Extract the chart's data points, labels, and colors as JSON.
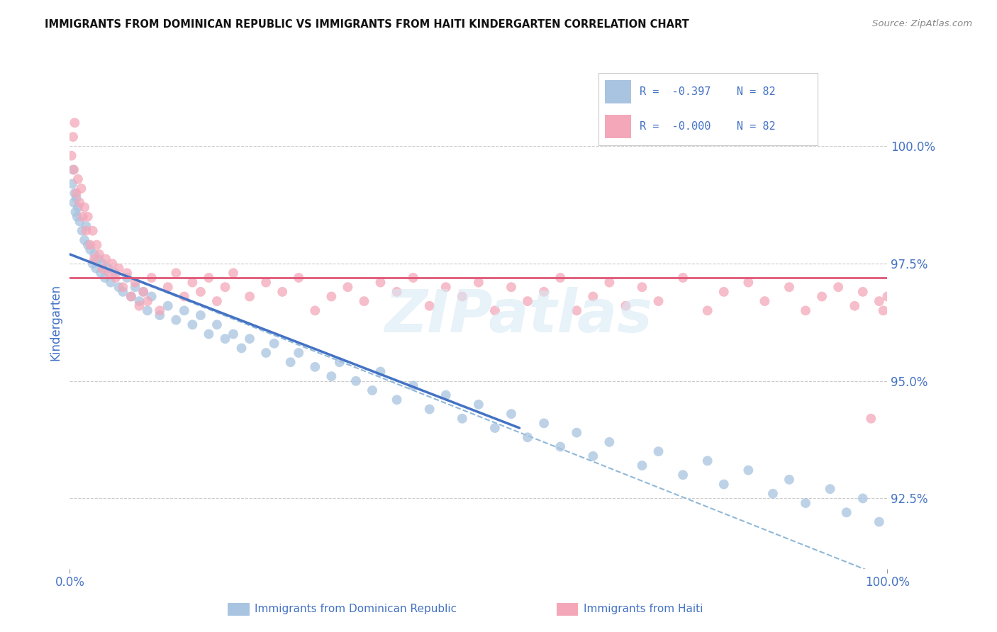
{
  "title": "IMMIGRANTS FROM DOMINICAN REPUBLIC VS IMMIGRANTS FROM HAITI KINDERGARTEN CORRELATION CHART",
  "source": "Source: ZipAtlas.com",
  "ylabel": "Kindergarten",
  "right_yticks": [
    100.0,
    97.5,
    95.0,
    92.5
  ],
  "right_ytick_labels": [
    "100.0%",
    "97.5%",
    "95.0%",
    "92.5%"
  ],
  "legend_r1": "R =  -0.397",
  "legend_n1": "N = 82",
  "legend_r2": "R =  -0.000",
  "legend_n2": "N = 82",
  "blue_color": "#a8c4e0",
  "pink_color": "#f4a7b9",
  "line_blue": "#4472c4",
  "line_pink": "#e05575",
  "line_dashed": "#90b8d8",
  "title_color": "#222222",
  "axis_label_color": "#4472c4",
  "legend_text_color": "#4472c4",
  "background_color": "#ffffff",
  "x_min": 0.0,
  "x_max": 100.0,
  "y_min": 91.0,
  "y_max": 101.5,
  "blue_scatter_x": [
    0.3,
    0.4,
    0.5,
    0.6,
    0.7,
    0.8,
    0.9,
    1.0,
    1.2,
    1.5,
    1.8,
    2.0,
    2.2,
    2.5,
    2.8,
    3.0,
    3.2,
    3.5,
    3.8,
    4.0,
    4.3,
    4.7,
    5.0,
    5.5,
    6.0,
    6.5,
    7.0,
    7.5,
    8.0,
    8.5,
    9.0,
    9.5,
    10.0,
    11.0,
    12.0,
    13.0,
    14.0,
    15.0,
    16.0,
    17.0,
    18.0,
    19.0,
    20.0,
    21.0,
    22.0,
    24.0,
    25.0,
    27.0,
    28.0,
    30.0,
    32.0,
    33.0,
    35.0,
    37.0,
    38.0,
    40.0,
    42.0,
    44.0,
    46.0,
    48.0,
    50.0,
    52.0,
    54.0,
    56.0,
    58.0,
    60.0,
    62.0,
    64.0,
    66.0,
    70.0,
    72.0,
    75.0,
    78.0,
    80.0,
    83.0,
    86.0,
    88.0,
    90.0,
    93.0,
    95.0,
    97.0,
    99.0
  ],
  "blue_scatter_y": [
    99.2,
    99.5,
    98.8,
    99.0,
    98.6,
    98.9,
    98.5,
    98.7,
    98.4,
    98.2,
    98.0,
    98.3,
    97.9,
    97.8,
    97.5,
    97.7,
    97.4,
    97.6,
    97.3,
    97.5,
    97.2,
    97.4,
    97.1,
    97.3,
    97.0,
    96.9,
    97.2,
    96.8,
    97.0,
    96.7,
    96.9,
    96.5,
    96.8,
    96.4,
    96.6,
    96.3,
    96.5,
    96.2,
    96.4,
    96.0,
    96.2,
    95.9,
    96.0,
    95.7,
    95.9,
    95.6,
    95.8,
    95.4,
    95.6,
    95.3,
    95.1,
    95.4,
    95.0,
    94.8,
    95.2,
    94.6,
    94.9,
    94.4,
    94.7,
    94.2,
    94.5,
    94.0,
    94.3,
    93.8,
    94.1,
    93.6,
    93.9,
    93.4,
    93.7,
    93.2,
    93.5,
    93.0,
    93.3,
    92.8,
    93.1,
    92.6,
    92.9,
    92.4,
    92.7,
    92.2,
    92.5,
    92.0
  ],
  "pink_scatter_x": [
    0.2,
    0.4,
    0.5,
    0.6,
    0.8,
    1.0,
    1.2,
    1.4,
    1.6,
    1.8,
    2.0,
    2.2,
    2.5,
    2.8,
    3.0,
    3.3,
    3.6,
    4.0,
    4.4,
    4.8,
    5.2,
    5.6,
    6.0,
    6.5,
    7.0,
    7.5,
    8.0,
    8.5,
    9.0,
    9.5,
    10.0,
    11.0,
    12.0,
    13.0,
    14.0,
    15.0,
    16.0,
    17.0,
    18.0,
    19.0,
    20.0,
    22.0,
    24.0,
    26.0,
    28.0,
    30.0,
    32.0,
    34.0,
    36.0,
    38.0,
    40.0,
    42.0,
    44.0,
    46.0,
    48.0,
    50.0,
    52.0,
    54.0,
    56.0,
    58.0,
    60.0,
    62.0,
    64.0,
    66.0,
    68.0,
    70.0,
    72.0,
    75.0,
    78.0,
    80.0,
    83.0,
    85.0,
    88.0,
    90.0,
    92.0,
    94.0,
    96.0,
    97.0,
    98.0,
    99.0,
    99.5,
    100.0
  ],
  "pink_scatter_y": [
    99.8,
    100.2,
    99.5,
    100.5,
    99.0,
    99.3,
    98.8,
    99.1,
    98.5,
    98.7,
    98.2,
    98.5,
    97.9,
    98.2,
    97.6,
    97.9,
    97.7,
    97.4,
    97.6,
    97.3,
    97.5,
    97.2,
    97.4,
    97.0,
    97.3,
    96.8,
    97.1,
    96.6,
    96.9,
    96.7,
    97.2,
    96.5,
    97.0,
    97.3,
    96.8,
    97.1,
    96.9,
    97.2,
    96.7,
    97.0,
    97.3,
    96.8,
    97.1,
    96.9,
    97.2,
    96.5,
    96.8,
    97.0,
    96.7,
    97.1,
    96.9,
    97.2,
    96.6,
    97.0,
    96.8,
    97.1,
    96.5,
    97.0,
    96.7,
    96.9,
    97.2,
    96.5,
    96.8,
    97.1,
    96.6,
    97.0,
    96.7,
    97.2,
    96.5,
    96.9,
    97.1,
    96.7,
    97.0,
    96.5,
    96.8,
    97.0,
    96.6,
    96.9,
    94.2,
    96.7,
    96.5,
    96.8
  ],
  "blue_line_x": [
    0.0,
    55.0
  ],
  "blue_line_y": [
    97.7,
    94.0
  ],
  "pink_line_x": [
    0.0,
    100.0
  ],
  "pink_line_y": [
    97.2,
    97.2
  ],
  "dashed_line_x": [
    0.0,
    100.0
  ],
  "dashed_line_y": [
    97.7,
    90.8
  ]
}
